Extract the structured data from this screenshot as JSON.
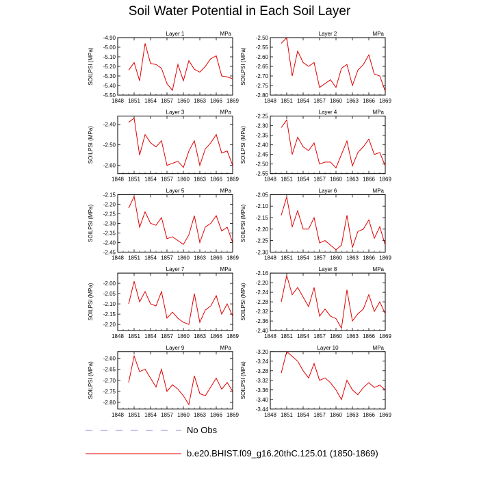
{
  "title": "Soil Water Potential in Each Soil Layer",
  "legend": {
    "obs_label": "No Obs",
    "model_label": "b.e20.BHIST.f09_g16.20thC.125.01 (1850-1869)",
    "obs_color": "#8888dd",
    "model_color": "#e00000"
  },
  "chart_data": [
    {
      "type": "line",
      "title": "Layer 1",
      "units": "MPa",
      "ylabel": "SOILPSI (MPa)",
      "x": [
        1850,
        1851,
        1852,
        1853,
        1854,
        1855,
        1856,
        1857,
        1858,
        1859,
        1860,
        1861,
        1862,
        1863,
        1864,
        1865,
        1866,
        1867,
        1868,
        1869
      ],
      "xticks": [
        1848,
        1851,
        1854,
        1857,
        1860,
        1863,
        1866,
        1869
      ],
      "xlim": [
        1848,
        1869
      ],
      "ylim": [
        -5.5,
        -4.9
      ],
      "yticks": [
        -4.9,
        -5.0,
        -5.1,
        -5.2,
        -5.3,
        -5.4,
        -5.5
      ],
      "ytick_labels": [
        "-4.90",
        "-5.00",
        "-5.10",
        "-5.20",
        "-5.30",
        "-5.40",
        "-5.50"
      ],
      "series": [
        {
          "values": [
            -5.24,
            -5.16,
            -5.35,
            -4.96,
            -5.17,
            -5.18,
            -5.22,
            -5.38,
            -5.45,
            -5.18,
            -5.35,
            -5.14,
            -5.23,
            -5.26,
            -5.2,
            -5.12,
            -5.09,
            -5.3,
            -5.31,
            -5.33
          ]
        }
      ]
    },
    {
      "type": "line",
      "title": "Layer 2",
      "units": "MPa",
      "ylabel": "SOILPSI (MPa)",
      "x": [
        1850,
        1851,
        1852,
        1853,
        1854,
        1855,
        1856,
        1857,
        1858,
        1859,
        1860,
        1861,
        1862,
        1863,
        1864,
        1865,
        1866,
        1867,
        1868,
        1869
      ],
      "xticks": [
        1848,
        1851,
        1854,
        1857,
        1860,
        1863,
        1866,
        1869
      ],
      "xlim": [
        1848,
        1869
      ],
      "ylim": [
        -2.8,
        -2.5
      ],
      "yticks": [
        -2.5,
        -2.55,
        -2.6,
        -2.65,
        -2.7,
        -2.75,
        -2.8
      ],
      "ytick_labels": [
        "-2.50",
        "-2.55",
        "-2.60",
        "-2.65",
        "-2.70",
        "-2.75",
        "-2.80"
      ],
      "series": [
        {
          "values": [
            -2.53,
            -2.5,
            -2.7,
            -2.57,
            -2.63,
            -2.65,
            -2.63,
            -2.76,
            -2.74,
            -2.72,
            -2.76,
            -2.66,
            -2.64,
            -2.75,
            -2.67,
            -2.64,
            -2.59,
            -2.69,
            -2.7,
            -2.78
          ]
        }
      ]
    },
    {
      "type": "line",
      "title": "Layer 3",
      "units": "MPa",
      "ylabel": "SOILPSI (MPa)",
      "x": [
        1850,
        1851,
        1852,
        1853,
        1854,
        1855,
        1856,
        1857,
        1858,
        1859,
        1860,
        1861,
        1862,
        1863,
        1864,
        1865,
        1866,
        1867,
        1868,
        1869
      ],
      "xticks": [
        1848,
        1851,
        1854,
        1857,
        1860,
        1863,
        1866,
        1869
      ],
      "xlim": [
        1848,
        1869
      ],
      "ylim": [
        -2.64,
        -2.36
      ],
      "yticks": [
        -2.4,
        -2.5,
        -2.6
      ],
      "ytick_labels": [
        "-2.40",
        "-2.50",
        "-2.60"
      ],
      "series": [
        {
          "values": [
            -2.39,
            -2.37,
            -2.55,
            -2.45,
            -2.49,
            -2.51,
            -2.48,
            -2.6,
            -2.59,
            -2.58,
            -2.61,
            -2.53,
            -2.48,
            -2.6,
            -2.52,
            -2.49,
            -2.45,
            -2.54,
            -2.53,
            -2.6
          ]
        }
      ]
    },
    {
      "type": "line",
      "title": "Layer 4",
      "units": "MPa",
      "ylabel": "SOILPSI (MPa)",
      "x": [
        1850,
        1851,
        1852,
        1853,
        1854,
        1855,
        1856,
        1857,
        1858,
        1859,
        1860,
        1861,
        1862,
        1863,
        1864,
        1865,
        1866,
        1867,
        1868,
        1869
      ],
      "xticks": [
        1848,
        1851,
        1854,
        1857,
        1860,
        1863,
        1866,
        1869
      ],
      "xlim": [
        1848,
        1869
      ],
      "ylim": [
        -2.55,
        -2.25
      ],
      "yticks": [
        -2.25,
        -2.3,
        -2.35,
        -2.4,
        -2.45,
        -2.5,
        -2.55
      ],
      "ytick_labels": [
        "-2.25",
        "-2.30",
        "-2.35",
        "-2.40",
        "-2.45",
        "-2.50",
        "-2.55"
      ],
      "series": [
        {
          "values": [
            -2.31,
            -2.27,
            -2.45,
            -2.36,
            -2.41,
            -2.43,
            -2.39,
            -2.5,
            -2.49,
            -2.49,
            -2.52,
            -2.45,
            -2.38,
            -2.51,
            -2.44,
            -2.41,
            -2.37,
            -2.45,
            -2.44,
            -2.51
          ]
        }
      ]
    },
    {
      "type": "line",
      "title": "Layer 5",
      "units": "MPa",
      "ylabel": "SOILPSI (MPa)",
      "x": [
        1850,
        1851,
        1852,
        1853,
        1854,
        1855,
        1856,
        1857,
        1858,
        1859,
        1860,
        1861,
        1862,
        1863,
        1864,
        1865,
        1866,
        1867,
        1868,
        1869
      ],
      "xticks": [
        1848,
        1851,
        1854,
        1857,
        1860,
        1863,
        1866,
        1869
      ],
      "xlim": [
        1848,
        1869
      ],
      "ylim": [
        -2.45,
        -2.15
      ],
      "yticks": [
        -2.15,
        -2.2,
        -2.25,
        -2.3,
        -2.35,
        -2.4,
        -2.45
      ],
      "ytick_labels": [
        "-2.15",
        "-2.20",
        "-2.25",
        "-2.30",
        "-2.35",
        "-2.40",
        "-2.45"
      ],
      "series": [
        {
          "values": [
            -2.22,
            -2.16,
            -2.32,
            -2.24,
            -2.3,
            -2.31,
            -2.27,
            -2.38,
            -2.37,
            -2.39,
            -2.41,
            -2.36,
            -2.26,
            -2.4,
            -2.32,
            -2.3,
            -2.26,
            -2.34,
            -2.32,
            -2.4
          ]
        }
      ]
    },
    {
      "type": "line",
      "title": "Layer 6",
      "units": "MPa",
      "ylabel": "SOILPSI (MPa)",
      "x": [
        1850,
        1851,
        1852,
        1853,
        1854,
        1855,
        1856,
        1857,
        1858,
        1859,
        1860,
        1861,
        1862,
        1863,
        1864,
        1865,
        1866,
        1867,
        1868,
        1869
      ],
      "xticks": [
        1848,
        1851,
        1854,
        1857,
        1860,
        1863,
        1866,
        1869
      ],
      "xlim": [
        1848,
        1869
      ],
      "ylim": [
        -2.3,
        -2.05
      ],
      "yticks": [
        -2.05,
        -2.1,
        -2.15,
        -2.2,
        -2.25,
        -2.3
      ],
      "ytick_labels": [
        "-2.05",
        "-2.10",
        "-2.15",
        "-2.20",
        "-2.25",
        "-2.30"
      ],
      "series": [
        {
          "values": [
            -2.14,
            -2.06,
            -2.19,
            -2.12,
            -2.2,
            -2.2,
            -2.15,
            -2.26,
            -2.25,
            -2.27,
            -2.29,
            -2.27,
            -2.14,
            -2.28,
            -2.21,
            -2.2,
            -2.16,
            -2.24,
            -2.19,
            -2.27
          ]
        }
      ]
    },
    {
      "type": "line",
      "title": "Layer 7",
      "units": "MPa",
      "ylabel": "SOILPSI (MPa)",
      "x": [
        1850,
        1851,
        1852,
        1853,
        1854,
        1855,
        1856,
        1857,
        1858,
        1859,
        1860,
        1861,
        1862,
        1863,
        1864,
        1865,
        1866,
        1867,
        1868,
        1869
      ],
      "xticks": [
        1848,
        1851,
        1854,
        1857,
        1860,
        1863,
        1866,
        1869
      ],
      "xlim": [
        1848,
        1869
      ],
      "ylim": [
        -2.23,
        -1.95
      ],
      "yticks": [
        -2.0,
        -2.05,
        -2.1,
        -2.15,
        -2.2
      ],
      "ytick_labels": [
        "-2.00",
        "-2.05",
        "-2.10",
        "-2.15",
        "-2.20"
      ],
      "series": [
        {
          "values": [
            -2.1,
            -1.99,
            -2.09,
            -2.04,
            -2.1,
            -2.11,
            -2.04,
            -2.17,
            -2.14,
            -2.17,
            -2.19,
            -2.2,
            -2.05,
            -2.19,
            -2.13,
            -2.11,
            -2.06,
            -2.15,
            -2.1,
            -2.16
          ]
        }
      ]
    },
    {
      "type": "line",
      "title": "Layer 8",
      "units": "MPa",
      "ylabel": "SOILPSI (MPa)",
      "x": [
        1850,
        1851,
        1852,
        1853,
        1854,
        1855,
        1856,
        1857,
        1858,
        1859,
        1860,
        1861,
        1862,
        1863,
        1864,
        1865,
        1866,
        1867,
        1868,
        1869
      ],
      "xticks": [
        1848,
        1851,
        1854,
        1857,
        1860,
        1863,
        1866,
        1869
      ],
      "xlim": [
        1848,
        1869
      ],
      "ylim": [
        -2.4,
        -2.16
      ],
      "yticks": [
        -2.16,
        -2.2,
        -2.24,
        -2.28,
        -2.32,
        -2.36,
        -2.4
      ],
      "ytick_labels": [
        "-2.16",
        "-2.20",
        "-2.24",
        "-2.28",
        "-2.32",
        "-2.36",
        "-2.40"
      ],
      "series": [
        {
          "values": [
            -2.28,
            -2.17,
            -2.25,
            -2.22,
            -2.26,
            -2.3,
            -2.22,
            -2.34,
            -2.31,
            -2.34,
            -2.35,
            -2.39,
            -2.23,
            -2.36,
            -2.33,
            -2.31,
            -2.25,
            -2.32,
            -2.28,
            -2.33
          ]
        }
      ]
    },
    {
      "type": "line",
      "title": "Layer 9",
      "units": "MPa",
      "ylabel": "SOILPSI (MPa)",
      "x": [
        1850,
        1851,
        1852,
        1853,
        1854,
        1855,
        1856,
        1857,
        1858,
        1859,
        1860,
        1861,
        1862,
        1863,
        1864,
        1865,
        1866,
        1867,
        1868,
        1869
      ],
      "xticks": [
        1848,
        1851,
        1854,
        1857,
        1860,
        1863,
        1866,
        1869
      ],
      "xlim": [
        1848,
        1869
      ],
      "ylim": [
        -2.83,
        -2.57
      ],
      "yticks": [
        -2.6,
        -2.65,
        -2.7,
        -2.75,
        -2.8
      ],
      "ytick_labels": [
        "-2.60",
        "-2.65",
        "-2.70",
        "-2.75",
        "-2.80"
      ],
      "series": [
        {
          "values": [
            -2.71,
            -2.59,
            -2.66,
            -2.65,
            -2.69,
            -2.73,
            -2.65,
            -2.75,
            -2.72,
            -2.74,
            -2.77,
            -2.81,
            -2.68,
            -2.76,
            -2.77,
            -2.73,
            -2.69,
            -2.74,
            -2.71,
            -2.75
          ]
        }
      ]
    },
    {
      "type": "line",
      "title": "Layer 10",
      "units": "MPa",
      "ylabel": "SOILPSI (MPa)",
      "x": [
        1850,
        1851,
        1852,
        1853,
        1854,
        1855,
        1856,
        1857,
        1858,
        1859,
        1860,
        1861,
        1862,
        1863,
        1864,
        1865,
        1866,
        1867,
        1868,
        1869
      ],
      "xticks": [
        1848,
        1851,
        1854,
        1857,
        1860,
        1863,
        1866,
        1869
      ],
      "xlim": [
        1848,
        1869
      ],
      "ylim": [
        -3.44,
        -3.2
      ],
      "yticks": [
        -3.2,
        -3.24,
        -3.28,
        -3.32,
        -3.36,
        -3.4,
        -3.44
      ],
      "ytick_labels": [
        "-3.20",
        "-3.24",
        "-3.28",
        "-3.32",
        "-3.36",
        "-3.40",
        "-3.44"
      ],
      "series": [
        {
          "values": [
            -3.29,
            -3.2,
            -3.22,
            -3.24,
            -3.28,
            -3.31,
            -3.25,
            -3.32,
            -3.31,
            -3.33,
            -3.36,
            -3.4,
            -3.32,
            -3.36,
            -3.38,
            -3.35,
            -3.33,
            -3.35,
            -3.34,
            -3.36
          ]
        }
      ]
    }
  ]
}
